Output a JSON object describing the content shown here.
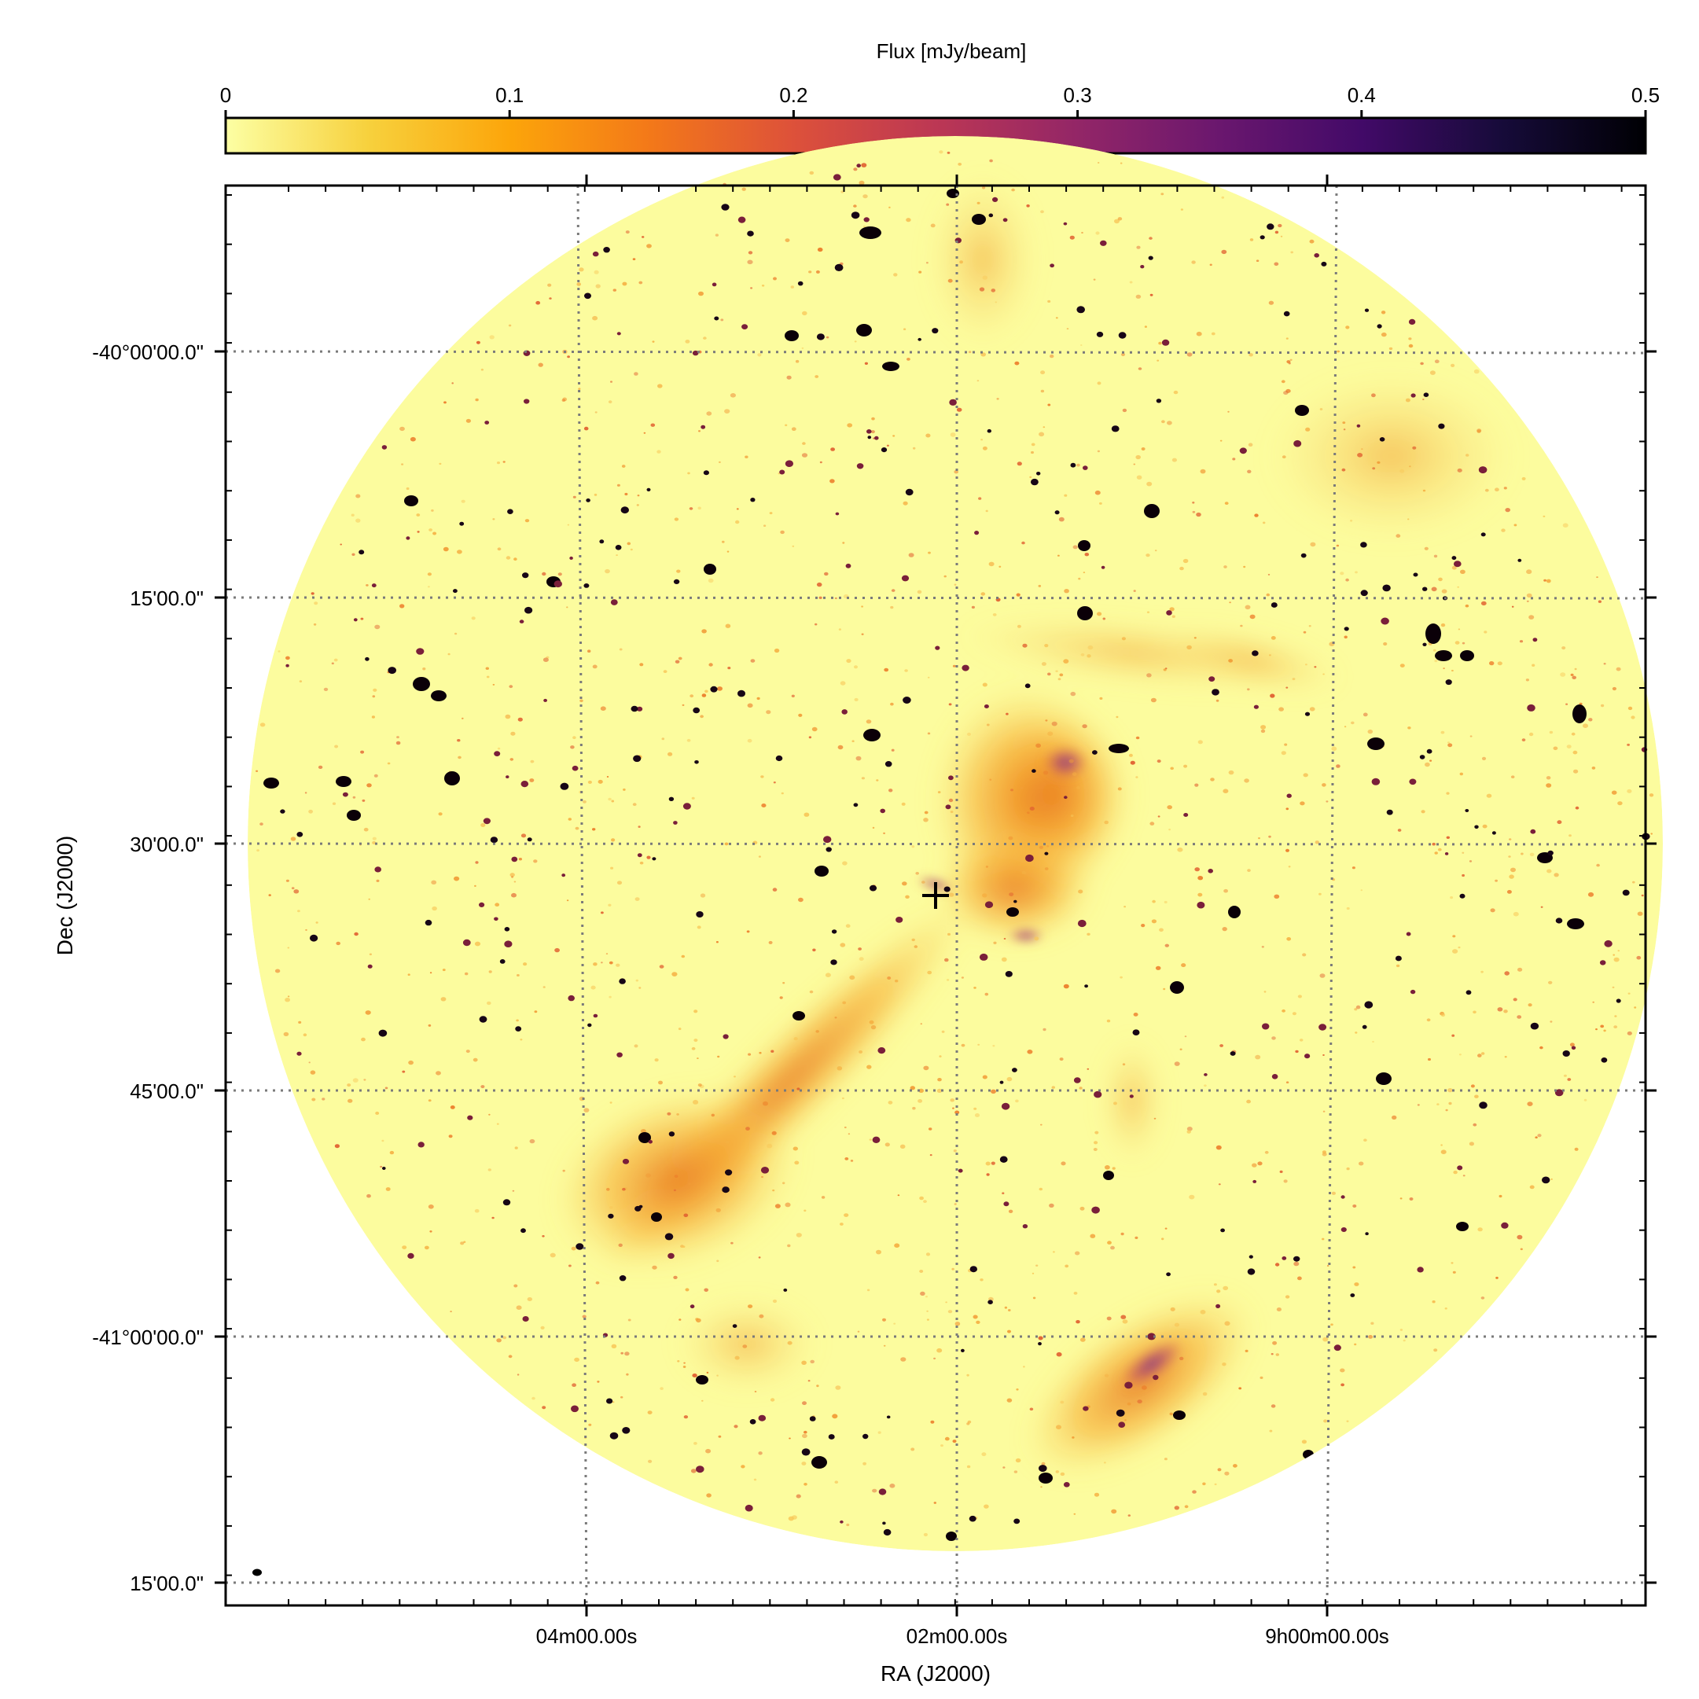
{
  "colorbar": {
    "label": "Flux [mJy/beam]",
    "min": 0,
    "max": 0.5,
    "ticks": [
      "0",
      "0.1",
      "0.2",
      "0.3",
      "0.4",
      "0.5"
    ],
    "colormap": "inferno_r",
    "stops": [
      "#fcffa4",
      "#f7d13d",
      "#fca50a",
      "#f37819",
      "#dd513a",
      "#bc3754",
      "#932667",
      "#6a176e",
      "#420a68",
      "#160b39",
      "#000004"
    ]
  },
  "axes": {
    "xlabel": "RA (J2000)",
    "ylabel": "Dec (J2000)",
    "x_tick_labels": [
      "04m00.00s",
      "02m00.00s",
      "9h00m00.00s"
    ],
    "y_tick_labels": [
      "-40°00'00.0\"",
      "15'00.0\"",
      "30'00.0\"",
      "45'00.0\"",
      "-41°00'00.0\"",
      "15'00.0\""
    ],
    "grid": "dotted, gray"
  },
  "image": {
    "description_colors": {
      "background": "#fcfc9e",
      "diffuse": "#f0a030",
      "sources": "#0a0008"
    }
  }
}
